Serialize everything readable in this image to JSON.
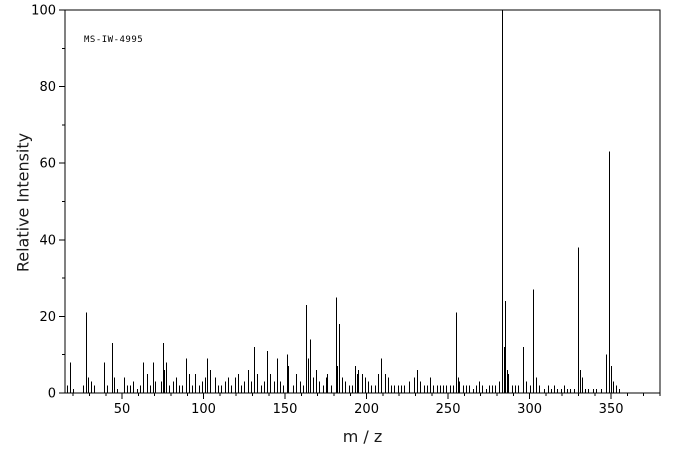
{
  "colors": {
    "background": "#ffffff",
    "axis": "#000000",
    "tick_text": "#000000",
    "peak": "#000000",
    "label_text": "#000000"
  },
  "chart_data": {
    "type": "bar",
    "subtype": "mass_spectrum_stick_plot",
    "title": "MS-IW-4995",
    "xlabel": "m / z",
    "ylabel": "Relative Intensity",
    "xlim": [
      15,
      380
    ],
    "ylim": [
      0,
      100
    ],
    "x_ticks": [
      50,
      100,
      150,
      200,
      250,
      300,
      350
    ],
    "y_ticks": [
      0,
      20,
      40,
      60,
      80,
      100
    ],
    "x_minor_step": 10,
    "y_minor_step": 10,
    "grid": false,
    "legend": null,
    "peaks_format": "[m_over_z, relative_intensity_percent]",
    "peaks": [
      [
        16,
        2
      ],
      [
        18,
        8
      ],
      [
        20,
        1
      ],
      [
        26,
        2
      ],
      [
        28,
        21
      ],
      [
        29,
        4
      ],
      [
        31,
        3
      ],
      [
        33,
        2
      ],
      [
        39,
        8
      ],
      [
        41,
        2
      ],
      [
        44,
        13
      ],
      [
        45,
        4
      ],
      [
        47,
        1
      ],
      [
        51,
        4
      ],
      [
        53,
        2
      ],
      [
        55,
        2
      ],
      [
        57,
        3
      ],
      [
        59,
        1
      ],
      [
        61,
        2
      ],
      [
        63,
        8
      ],
      [
        65,
        5
      ],
      [
        67,
        2
      ],
      [
        69,
        8
      ],
      [
        70,
        3
      ],
      [
        74,
        3
      ],
      [
        75,
        13
      ],
      [
        76,
        6
      ],
      [
        77,
        8
      ],
      [
        79,
        2
      ],
      [
        81,
        3
      ],
      [
        83,
        4
      ],
      [
        85,
        2
      ],
      [
        87,
        2
      ],
      [
        89,
        9
      ],
      [
        91,
        5
      ],
      [
        93,
        2
      ],
      [
        95,
        5
      ],
      [
        97,
        2
      ],
      [
        99,
        3
      ],
      [
        101,
        4
      ],
      [
        102,
        9
      ],
      [
        104,
        6
      ],
      [
        107,
        4
      ],
      [
        109,
        2
      ],
      [
        111,
        2
      ],
      [
        113,
        3
      ],
      [
        115,
        4
      ],
      [
        117,
        2
      ],
      [
        119,
        4
      ],
      [
        121,
        5
      ],
      [
        123,
        2
      ],
      [
        125,
        3
      ],
      [
        127,
        6
      ],
      [
        129,
        3
      ],
      [
        131,
        12
      ],
      [
        133,
        5
      ],
      [
        135,
        2
      ],
      [
        137,
        3
      ],
      [
        139,
        11
      ],
      [
        141,
        5
      ],
      [
        143,
        3
      ],
      [
        145,
        9
      ],
      [
        147,
        3
      ],
      [
        149,
        2
      ],
      [
        151,
        10
      ],
      [
        152,
        7
      ],
      [
        155,
        2
      ],
      [
        157,
        5
      ],
      [
        159,
        3
      ],
      [
        161,
        2
      ],
      [
        163,
        23
      ],
      [
        164,
        9
      ],
      [
        165,
        14
      ],
      [
        167,
        4
      ],
      [
        169,
        6
      ],
      [
        171,
        3
      ],
      [
        173,
        2
      ],
      [
        175,
        4
      ],
      [
        176,
        5
      ],
      [
        178,
        2
      ],
      [
        181,
        25
      ],
      [
        182,
        7
      ],
      [
        183,
        18
      ],
      [
        185,
        4
      ],
      [
        187,
        3
      ],
      [
        189,
        2
      ],
      [
        191,
        2
      ],
      [
        193,
        7
      ],
      [
        194,
        5
      ],
      [
        195,
        6
      ],
      [
        197,
        5
      ],
      [
        199,
        4
      ],
      [
        201,
        3
      ],
      [
        203,
        2
      ],
      [
        205,
        2
      ],
      [
        207,
        5
      ],
      [
        209,
        9
      ],
      [
        211,
        5
      ],
      [
        213,
        4
      ],
      [
        215,
        2
      ],
      [
        217,
        2
      ],
      [
        219,
        2
      ],
      [
        221,
        2
      ],
      [
        223,
        2
      ],
      [
        226,
        3
      ],
      [
        229,
        4
      ],
      [
        231,
        6
      ],
      [
        233,
        3
      ],
      [
        235,
        2
      ],
      [
        237,
        2
      ],
      [
        239,
        4
      ],
      [
        241,
        2
      ],
      [
        243,
        2
      ],
      [
        245,
        2
      ],
      [
        247,
        2
      ],
      [
        249,
        2
      ],
      [
        251,
        2
      ],
      [
        253,
        2
      ],
      [
        255,
        21
      ],
      [
        256,
        4
      ],
      [
        257,
        3
      ],
      [
        259,
        2
      ],
      [
        261,
        2
      ],
      [
        263,
        2
      ],
      [
        265,
        1
      ],
      [
        267,
        2
      ],
      [
        269,
        3
      ],
      [
        271,
        2
      ],
      [
        273,
        1
      ],
      [
        275,
        2
      ],
      [
        277,
        2
      ],
      [
        279,
        2
      ],
      [
        281,
        3
      ],
      [
        283,
        100
      ],
      [
        284,
        12
      ],
      [
        285,
        24
      ],
      [
        286,
        6
      ],
      [
        287,
        5
      ],
      [
        289,
        2
      ],
      [
        291,
        2
      ],
      [
        293,
        2
      ],
      [
        296,
        12
      ],
      [
        298,
        3
      ],
      [
        300,
        2
      ],
      [
        302,
        27
      ],
      [
        304,
        4
      ],
      [
        306,
        2
      ],
      [
        309,
        1
      ],
      [
        311,
        2
      ],
      [
        313,
        1
      ],
      [
        315,
        2
      ],
      [
        317,
        1
      ],
      [
        319,
        1
      ],
      [
        321,
        2
      ],
      [
        323,
        1
      ],
      [
        325,
        1
      ],
      [
        327,
        1
      ],
      [
        330,
        38
      ],
      [
        331,
        6
      ],
      [
        332,
        4
      ],
      [
        334,
        1
      ],
      [
        336,
        1
      ],
      [
        339,
        1
      ],
      [
        341,
        1
      ],
      [
        344,
        1
      ],
      [
        347,
        10
      ],
      [
        349,
        63
      ],
      [
        350,
        7
      ],
      [
        351,
        3
      ],
      [
        353,
        2
      ],
      [
        355,
        1
      ]
    ]
  }
}
